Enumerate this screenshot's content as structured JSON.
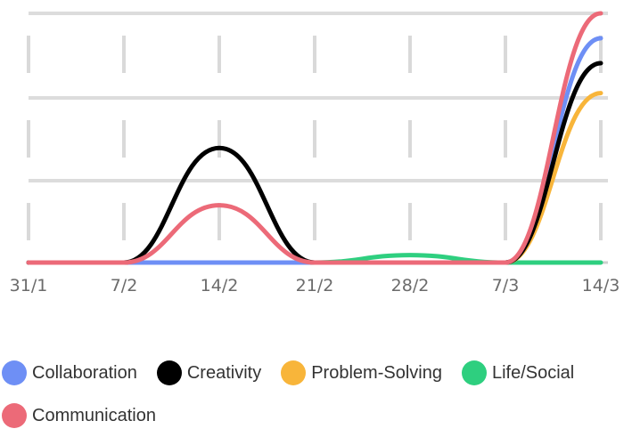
{
  "chart_data": {
    "type": "line",
    "x": [
      "31/1",
      "7/2",
      "14/2",
      "21/2",
      "28/2",
      "7/3",
      "14/3"
    ],
    "ylim": [
      0,
      100
    ],
    "grid": true,
    "legend_position": "bottom",
    "series": [
      {
        "name": "Collaboration",
        "color": "#6e8ff5",
        "values": [
          0,
          0,
          0,
          0,
          0,
          0,
          90
        ]
      },
      {
        "name": "Creativity",
        "color": "#000000",
        "values": [
          0,
          0,
          46,
          0,
          0,
          0,
          80
        ]
      },
      {
        "name": "Problem-Solving",
        "color": "#f8b53a",
        "values": [
          0,
          0,
          0,
          0,
          0,
          0,
          68
        ]
      },
      {
        "name": "Life/Social",
        "color": "#2ecf7f",
        "values": [
          0,
          0,
          0,
          0,
          3,
          0,
          0
        ]
      },
      {
        "name": "Communication",
        "color": "#ec6a78",
        "values": [
          0,
          0,
          23,
          0,
          0,
          0,
          100
        ]
      }
    ]
  }
}
